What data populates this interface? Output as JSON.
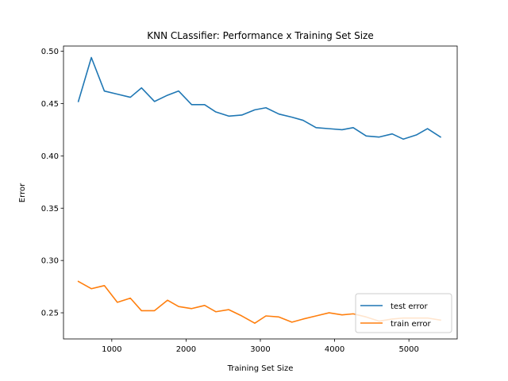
{
  "chart_data": {
    "type": "line",
    "title": "KNN CLassifier: Performance x Training Set Size",
    "xlabel": "Training Set Size",
    "ylabel": "Error",
    "xlim": [
      350,
      5650
    ],
    "ylim": [
      0.225,
      0.505
    ],
    "xticks": [
      1000,
      2000,
      3000,
      4000,
      5000
    ],
    "yticks": [
      0.25,
      0.3,
      0.35,
      0.4,
      0.45,
      0.5
    ],
    "grid": false,
    "legend_position": "lower-right",
    "x": [
      550,
      725,
      900,
      1075,
      1250,
      1400,
      1575,
      1750,
      1900,
      2075,
      2250,
      2400,
      2575,
      2750,
      2925,
      3075,
      3250,
      3425,
      3575,
      3750,
      3925,
      4100,
      4250,
      4425,
      4600,
      4775,
      4925,
      5100,
      5250,
      5425
    ],
    "series": [
      {
        "name": "test error",
        "color": "#1f77b4",
        "values": [
          0.452,
          0.494,
          0.462,
          0.459,
          0.456,
          0.465,
          0.452,
          0.458,
          0.462,
          0.449,
          0.449,
          0.442,
          0.438,
          0.439,
          0.444,
          0.446,
          0.44,
          0.437,
          0.434,
          0.427,
          0.426,
          0.425,
          0.427,
          0.419,
          0.418,
          0.421,
          0.416,
          0.42,
          0.426,
          0.418
        ]
      },
      {
        "name": "train error",
        "color": "#ff7f0e",
        "values": [
          0.28,
          0.273,
          0.276,
          0.26,
          0.264,
          0.252,
          0.252,
          0.262,
          0.256,
          0.254,
          0.257,
          0.251,
          0.253,
          0.247,
          0.24,
          0.247,
          0.246,
          0.241,
          0.244,
          0.247,
          0.25,
          0.248,
          0.249,
          0.246,
          0.242,
          0.244,
          0.245,
          0.245,
          0.245,
          0.243
        ]
      }
    ]
  }
}
